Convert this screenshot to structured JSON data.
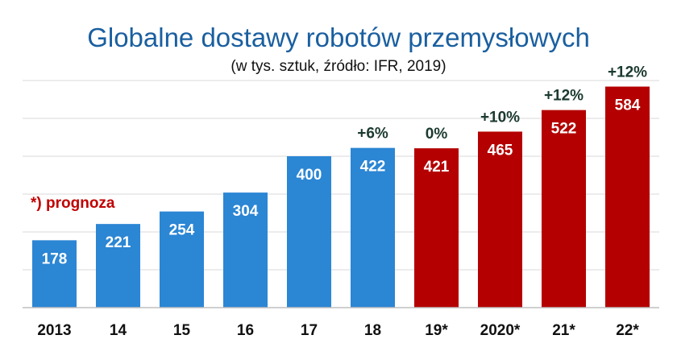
{
  "chart_data": {
    "type": "bar",
    "title": "Globalne dostawy robotów przemysłowych",
    "subtitle": "(w tys. sztuk, źródło: IFR, 2019)",
    "note": "*) prognoza",
    "categories": [
      "2013",
      "14",
      "15",
      "16",
      "17",
      "18",
      "19*",
      "2020*",
      "21*",
      "22*"
    ],
    "values": [
      178,
      221,
      254,
      304,
      400,
      422,
      421,
      465,
      522,
      584
    ],
    "growth_labels": [
      "",
      "",
      "",
      "",
      "",
      "+6%",
      "0%",
      "+10%",
      "+12%",
      "+12%"
    ],
    "forecast": [
      false,
      false,
      false,
      false,
      false,
      false,
      true,
      true,
      true,
      true
    ],
    "ylim": [
      0,
      600
    ],
    "grid": true,
    "colors": {
      "actual": "#2b86d4",
      "forecast": "#b40000",
      "title": "#1a5fa0",
      "note": "#c00000"
    }
  }
}
